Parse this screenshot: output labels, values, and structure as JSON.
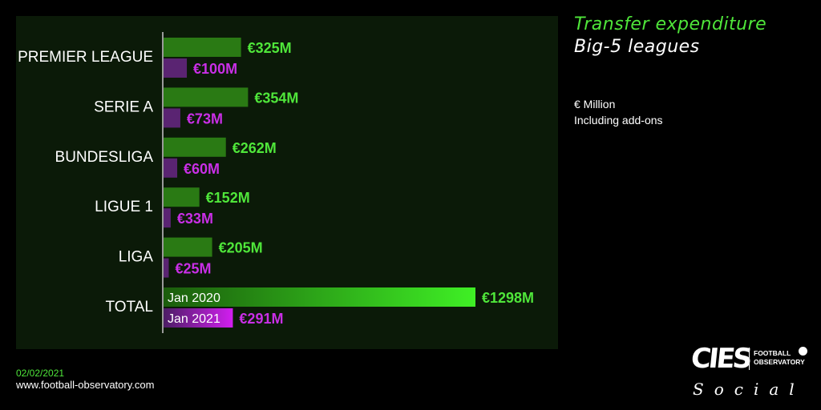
{
  "header": {
    "title": "Transfer expenditure",
    "subtitle": "Big-5 leagues",
    "note_unit": "€ Million",
    "note_addons": "Including add-ons"
  },
  "footer": {
    "date": "02/02/2021",
    "website": "www.football-observatory.com"
  },
  "logo": {
    "mark": "CIES",
    "line1": "FOOTBALL",
    "line2": "OBSERVATORY",
    "tagline": "Social"
  },
  "colors": {
    "background": "#000000",
    "panel": "#0b1a08",
    "jan2020_bar": "#2a7a14",
    "jan2020_label": "#4fe63a",
    "jan2021_bar": "#5a2472",
    "jan2021_label": "#c92fe6",
    "total_2020_gradient": [
      "#1b5c0c",
      "#3ff025"
    ],
    "total_2021_gradient": [
      "#4a1d63",
      "#d21ef0"
    ]
  },
  "chart_data": {
    "type": "bar",
    "orientation": "horizontal",
    "categories": [
      "PREMIER LEAGUE",
      "SERIE A",
      "BUNDESLIGA",
      "LIGUE 1",
      "LIGA",
      "TOTAL"
    ],
    "series": [
      {
        "name": "Jan 2020",
        "values": [
          325,
          354,
          262,
          152,
          205,
          1298
        ],
        "labels": [
          "€325M",
          "€354M",
          "€262M",
          "€152M",
          "€205M",
          "€1298M"
        ]
      },
      {
        "name": "Jan 2021",
        "values": [
          100,
          73,
          60,
          33,
          25,
          291
        ],
        "labels": [
          "€100M",
          "€73M",
          "€60M",
          "€33M",
          "€25M",
          "€291M"
        ]
      }
    ],
    "xlim": [
      0,
      1298
    ],
    "legend": "inside-total-bars"
  }
}
